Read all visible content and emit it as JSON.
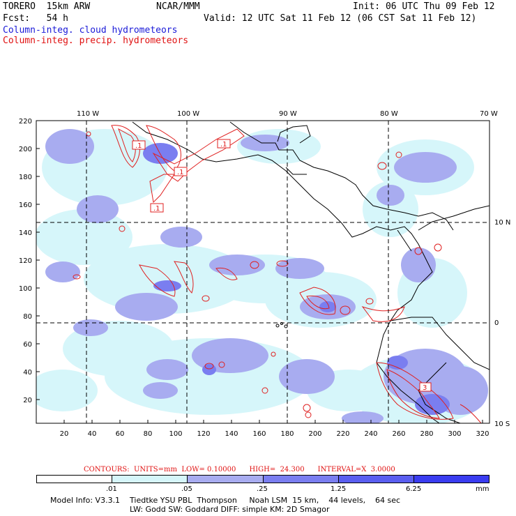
{
  "header": {
    "model": "TORERO  15km ARW",
    "center": "NCAR/MMM",
    "init": "Init: 06 UTC Thu 09 Feb 12",
    "fcst": "Fcst:   54 h",
    "valid": "Valid: 12 UTC Sat 11 Feb 12 (06 CST Sat 11 Feb 12)",
    "field_cloud": "Column-integ. cloud hydrometeors",
    "field_precip": "Column-integ. precip. hydrometeors"
  },
  "colors": {
    "cloud_light": "#d6f6fa",
    "cloud_mid": "#a8acf0",
    "cloud_dark": "#7a7ef0",
    "precip_contour": "#e02020",
    "shade_5": "#5a5ef0",
    "shade_6": "#3a3cf0",
    "shade_7": "#1a1ae8"
  },
  "map": {
    "lon_labels": [
      "110 W",
      "100 W",
      "90 W",
      "80 W",
      "70 W"
    ],
    "lat_labels": [
      "10 N",
      "0",
      "10 S"
    ],
    "x_ticks": [
      "20",
      "40",
      "60",
      "80",
      "100",
      "120",
      "140",
      "160",
      "180",
      "200",
      "220",
      "240",
      "260",
      "280",
      "300",
      "320"
    ],
    "y_ticks": [
      "20",
      "40",
      "60",
      "80",
      "100",
      "120",
      "140",
      "160",
      "180",
      "200",
      "220"
    ],
    "contour_labels": [
      ".1",
      ".1",
      ".1",
      ".1",
      "3"
    ]
  },
  "legend": {
    "contours_text": "CONTOURS:  UNITS=mm  LOW= 0.10000      HIGH=  24.300      INTERVAL=X  3.0000",
    "bins": [
      ".01",
      ".05",
      ".25",
      "1.25",
      "6.25"
    ],
    "units": "mm"
  },
  "footer": {
    "line1": "Model Info: V3.3.1    Tiedtke YSU PBL  Thompson     Noah LSM  15 km,    44 levels,    64 sec",
    "line2": "LW: Godd SW: Goddard DIFF: simple KM: 2D Smagor"
  }
}
